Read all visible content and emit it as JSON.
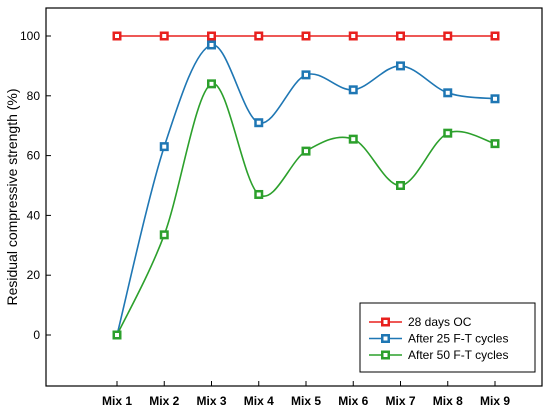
{
  "chart_data": {
    "type": "line",
    "title": "",
    "xlabel": "",
    "ylabel": "Residual compressive strength (%)",
    "categories": [
      "Mix 1",
      "Mix 2",
      "Mix 3",
      "Mix 4",
      "Mix 5",
      "Mix 6",
      "Mix 7",
      "Mix 8",
      "Mix 9"
    ],
    "ylim": [
      -17,
      110
    ],
    "yticks": [
      0,
      20,
      40,
      60,
      80,
      100
    ],
    "grid": false,
    "legend_position": "bottom-right",
    "series": [
      {
        "name": "28 days OC",
        "color": "#e8201e",
        "smooth": false,
        "values": [
          100,
          100,
          100,
          100,
          100,
          100,
          100,
          100,
          100
        ]
      },
      {
        "name": "After 25 F-T cycles",
        "color": "#1f77b4",
        "smooth": true,
        "values": [
          0,
          63,
          97,
          71,
          87,
          82,
          90,
          81,
          79
        ]
      },
      {
        "name": "After 50 F-T cycles",
        "color": "#2ca02c",
        "smooth": true,
        "values": [
          0,
          33.5,
          84,
          47,
          61.5,
          65.5,
          50,
          67.5,
          64
        ]
      }
    ]
  }
}
